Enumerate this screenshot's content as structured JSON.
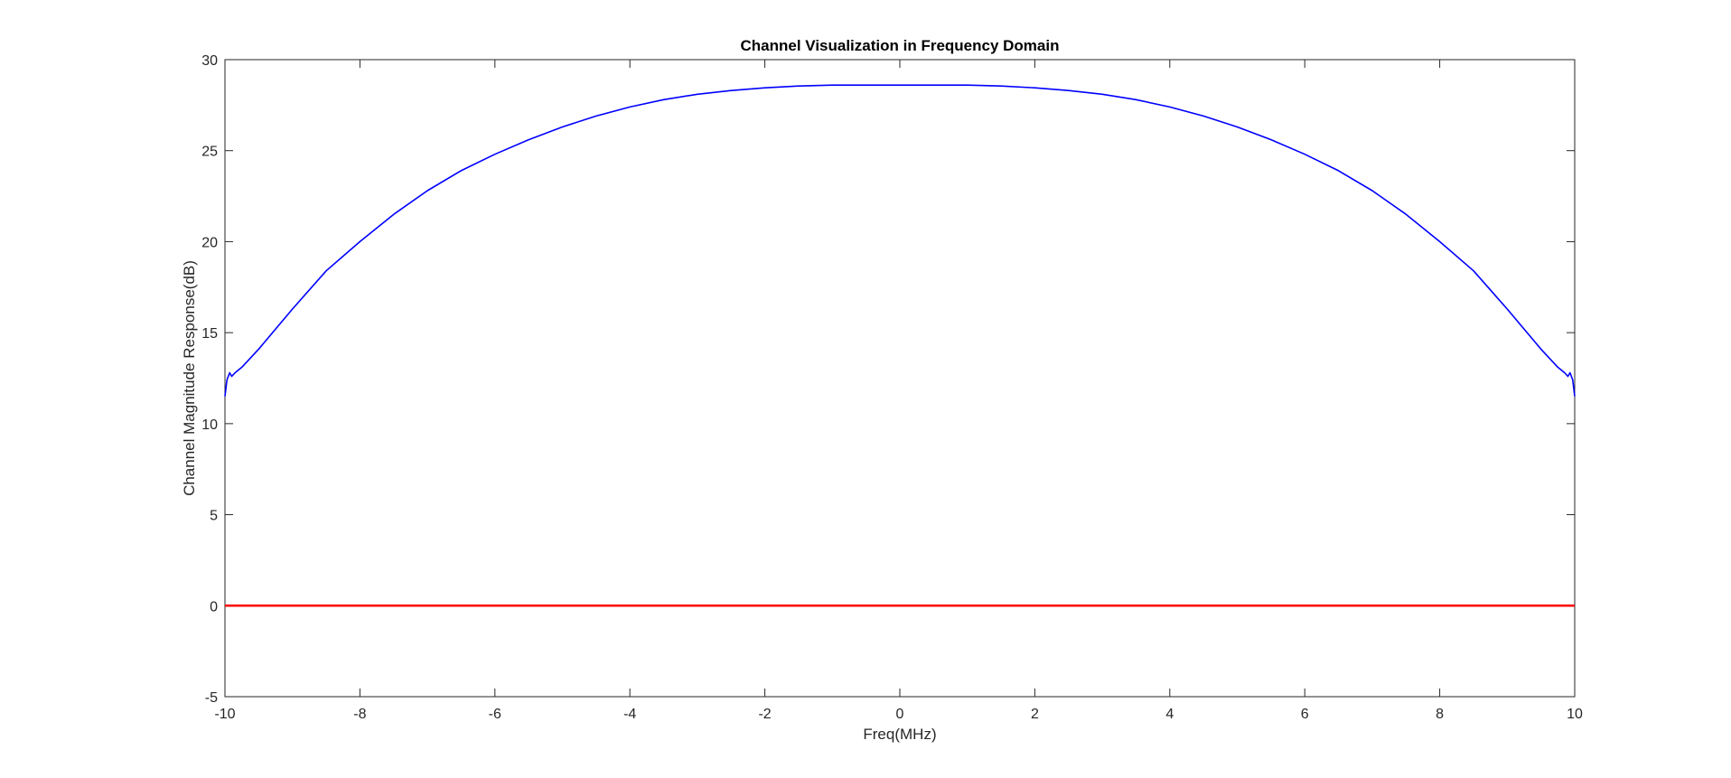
{
  "chart_data": {
    "type": "line",
    "title": "Channel Visualization in Frequency Domain",
    "xlabel": "Freq(MHz)",
    "ylabel": "Channel Magnitude Response(dB)",
    "xlim": [
      -10,
      10
    ],
    "ylim": [
      -5,
      30
    ],
    "xticks": [
      -10,
      -8,
      -6,
      -4,
      -2,
      0,
      2,
      4,
      6,
      8,
      10
    ],
    "yticks": [
      -5,
      0,
      5,
      10,
      15,
      20,
      25,
      30
    ],
    "grid": false,
    "legend": "none",
    "series": [
      {
        "color": "#0000ff",
        "x": [
          -10,
          -9.97,
          -9.93,
          -9.9,
          -9.85,
          -9.75,
          -9.5,
          -9.0,
          -8.5,
          -8.0,
          -7.5,
          -7.0,
          -6.5,
          -6.0,
          -5.5,
          -5.0,
          -4.5,
          -4.0,
          -3.5,
          -3.0,
          -2.5,
          -2.0,
          -1.5,
          -1.0,
          -0.5,
          0,
          0.5,
          1.0,
          1.5,
          2.0,
          2.5,
          3.0,
          3.5,
          4.0,
          4.5,
          5.0,
          5.5,
          6.0,
          6.5,
          7.0,
          7.5,
          8.0,
          8.5,
          9.0,
          9.5,
          9.75,
          9.85,
          9.9,
          9.93,
          9.97,
          10
        ],
        "values": [
          11.5,
          12.4,
          12.8,
          12.6,
          12.8,
          13.1,
          14.1,
          16.3,
          18.4,
          20.0,
          21.5,
          22.8,
          23.9,
          24.8,
          25.6,
          26.3,
          26.9,
          27.4,
          27.8,
          28.1,
          28.3,
          28.45,
          28.55,
          28.6,
          28.6,
          28.6,
          28.6,
          28.6,
          28.55,
          28.45,
          28.3,
          28.1,
          27.8,
          27.4,
          26.9,
          26.3,
          25.6,
          24.8,
          23.9,
          22.8,
          21.5,
          20.0,
          18.4,
          16.3,
          14.1,
          13.1,
          12.8,
          12.6,
          12.8,
          12.4,
          11.5
        ]
      },
      {
        "color": "#ff0000",
        "x": [
          -10,
          10
        ],
        "values": [
          0,
          0
        ]
      }
    ]
  }
}
